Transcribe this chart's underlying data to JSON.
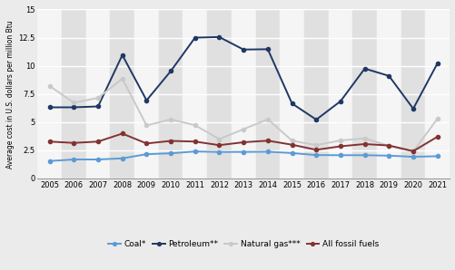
{
  "years": [
    2005,
    2006,
    2007,
    2008,
    2009,
    2010,
    2011,
    2012,
    2013,
    2014,
    2015,
    2016,
    2017,
    2018,
    2019,
    2020,
    2021
  ],
  "coal": [
    1.54,
    1.68,
    1.68,
    1.78,
    2.15,
    2.23,
    2.39,
    2.35,
    2.35,
    2.37,
    2.25,
    2.07,
    2.06,
    2.06,
    2.02,
    1.92,
    1.97
  ],
  "petroleum": [
    6.31,
    6.31,
    6.39,
    10.95,
    6.93,
    9.53,
    12.5,
    12.55,
    11.44,
    11.47,
    6.65,
    5.22,
    6.85,
    9.75,
    9.1,
    6.19,
    10.22
  ],
  "natural_gas": [
    8.21,
    6.72,
    7.15,
    8.86,
    4.7,
    5.24,
    4.72,
    3.49,
    4.37,
    5.25,
    3.35,
    2.95,
    3.37,
    3.55,
    2.89,
    2.39,
    5.3
  ],
  "all_fossil_fuels": [
    3.27,
    3.15,
    3.27,
    3.98,
    3.1,
    3.33,
    3.27,
    2.95,
    3.21,
    3.35,
    2.99,
    2.54,
    2.85,
    3.05,
    2.92,
    2.42,
    3.7
  ],
  "coal_color": "#5b9bd5",
  "petroleum_color": "#1f3864",
  "natural_gas_color": "#c9c9c9",
  "all_fossil_fuels_color": "#833232",
  "ylabel": "Average cost in U.S. dollars per million Btu",
  "ylim": [
    0,
    15
  ],
  "yticks": [
    0,
    2.5,
    5,
    7.5,
    10,
    12.5,
    15
  ],
  "ytick_labels": [
    "0",
    "2.5",
    "5",
    "7.5",
    "10",
    "12.5",
    "15"
  ],
  "bg_color": "#ebebeb",
  "band_color_light": "#f5f5f5",
  "band_color_dark": "#e0e0e0",
  "grid_color": "#ffffff",
  "legend_labels": [
    "Coal*",
    "Petroleum**",
    "Natural gas***",
    "All fossil fuels"
  ]
}
